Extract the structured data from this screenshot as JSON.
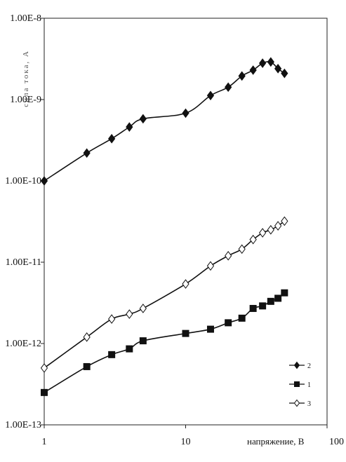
{
  "chart_data": {
    "type": "line",
    "xscale": "log",
    "yscale": "log",
    "xlim": [
      1,
      100
    ],
    "ylim": [
      1e-13,
      1e-08
    ],
    "xticks": [
      "1",
      "10",
      "100"
    ],
    "yticks": [
      "1.00E-8",
      "1.00E-9",
      "1.00E-10",
      "1.00E-11",
      "1.00E-12",
      "1.00E-13"
    ],
    "ytick_values": [
      1e-08,
      1e-09,
      1e-10,
      1e-11,
      1e-12,
      1e-13
    ],
    "xlabel": "напряжение, В",
    "ylabel": "сила тока, А",
    "grid": false,
    "legend_position": "bottom-right",
    "legend_order": [
      "2",
      "1",
      "3"
    ],
    "series": [
      {
        "name": "2",
        "marker": "diamond-filled",
        "x": [
          1,
          2,
          3,
          4,
          5,
          10,
          15,
          20,
          25,
          30,
          35,
          40,
          45,
          50
        ],
        "y": [
          1e-10,
          2.2e-10,
          3.3e-10,
          4.6e-10,
          5.8e-10,
          6.8e-10,
          1.12e-09,
          1.42e-09,
          1.95e-09,
          2.3e-09,
          2.8e-09,
          2.9e-09,
          2.4e-09,
          2.1e-09
        ]
      },
      {
        "name": "1",
        "marker": "square-filled",
        "x": [
          1,
          2,
          3,
          4,
          5,
          10,
          15,
          20,
          25,
          30,
          35,
          40,
          45,
          50
        ],
        "y": [
          2.5e-13,
          5.2e-13,
          7.3e-13,
          8.6e-13,
          1.08e-12,
          1.33e-12,
          1.5e-12,
          1.8e-12,
          2.05e-12,
          2.7e-12,
          2.9e-12,
          3.3e-12,
          3.6e-12,
          4.2e-12
        ]
      },
      {
        "name": "3",
        "marker": "diamond-open",
        "x": [
          1,
          2,
          3,
          4,
          5,
          10,
          15,
          20,
          25,
          30,
          35,
          40,
          45,
          50
        ],
        "y": [
          5e-13,
          1.2e-12,
          2e-12,
          2.3e-12,
          2.7e-12,
          5.4e-12,
          9e-12,
          1.2e-11,
          1.45e-11,
          1.9e-11,
          2.3e-11,
          2.5e-11,
          2.8e-11,
          3.2e-11
        ]
      }
    ]
  }
}
